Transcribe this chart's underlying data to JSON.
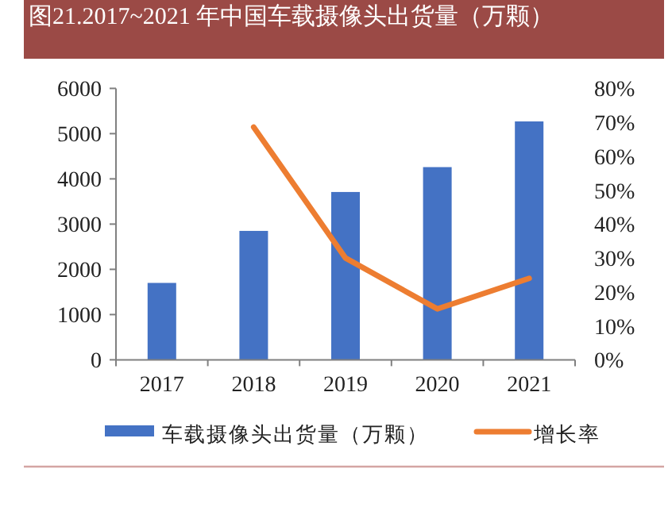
{
  "chart_data": {
    "type": "bar",
    "title": "图21.2017~2021 年中国车载摄像头出货量（万颗）",
    "categories": [
      "2017",
      "2018",
      "2019",
      "2020",
      "2021"
    ],
    "series": [
      {
        "name": "车载摄像头出货量（万颗）",
        "color": "#4472c4",
        "values": [
          1700,
          2850,
          3710,
          4260,
          5270
        ]
      },
      {
        "name": "增长率",
        "type": "line",
        "axis": "y2",
        "color": "#ed7d31",
        "values": [
          null,
          68.6,
          30,
          15,
          24
        ]
      }
    ],
    "ylim": [
      0,
      6000
    ],
    "yticks": [
      0,
      1000,
      2000,
      3000,
      4000,
      5000,
      6000
    ],
    "y2lim": [
      0,
      80
    ],
    "y2ticks": [
      {
        "value": 0,
        "label": "0%"
      },
      {
        "value": 10,
        "label": "10%"
      },
      {
        "value": 20,
        "label": "20%"
      },
      {
        "value": 30,
        "label": "30%"
      },
      {
        "value": 40,
        "label": "40%"
      },
      {
        "value": 50,
        "label": "50%"
      },
      {
        "value": 60,
        "label": "60%"
      },
      {
        "value": 70,
        "label": "70%"
      },
      {
        "value": 80,
        "label": "80%"
      }
    ],
    "legend": "bottom",
    "grid": false
  }
}
